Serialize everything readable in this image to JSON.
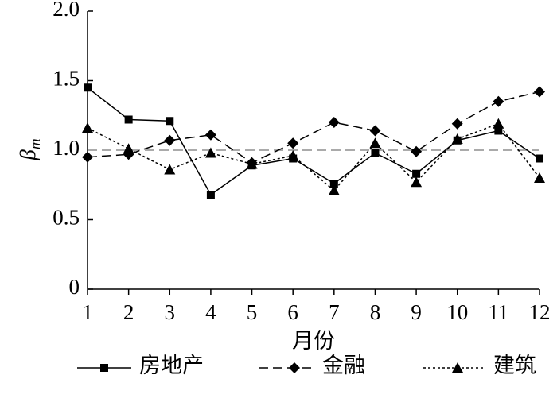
{
  "chart_data": {
    "type": "line",
    "x": [
      1,
      2,
      3,
      4,
      5,
      6,
      7,
      8,
      9,
      10,
      11,
      12
    ],
    "xlim": [
      1,
      12
    ],
    "xticks": [
      1,
      2,
      3,
      4,
      5,
      6,
      7,
      8,
      9,
      10,
      11,
      12
    ],
    "ylim": [
      0,
      2
    ],
    "yticks": [
      0,
      0.5,
      {
        "value": 1,
        "label": "1.0"
      },
      1.5,
      {
        "value": 2,
        "label": "2.0"
      }
    ],
    "xlabel": "月份",
    "ylabel": {
      "text": "β",
      "subscript": "m"
    },
    "reference_line": {
      "value": 1,
      "color": "#aaaaaa",
      "dash": "dashed"
    },
    "series": [
      {
        "name": "房地产",
        "color": "#000000",
        "dash": "solid",
        "marker": "square",
        "values": [
          1.45,
          1.22,
          1.21,
          0.68,
          0.89,
          0.94,
          0.76,
          0.98,
          0.83,
          1.07,
          1.14,
          0.94
        ]
      },
      {
        "name": "金融",
        "color": "#000000",
        "dash": "dashed",
        "marker": "diamond",
        "values": [
          0.95,
          0.97,
          1.07,
          1.11,
          0.91,
          1.05,
          1.2,
          1.14,
          0.99,
          1.19,
          1.35,
          1.42
        ]
      },
      {
        "name": "建筑",
        "color": "#000000",
        "dash": "dotted",
        "marker": "triangle",
        "values": [
          1.16,
          1.01,
          0.86,
          0.98,
          0.9,
          0.96,
          0.71,
          1.05,
          0.77,
          1.08,
          1.19,
          0.8
        ]
      }
    ]
  }
}
